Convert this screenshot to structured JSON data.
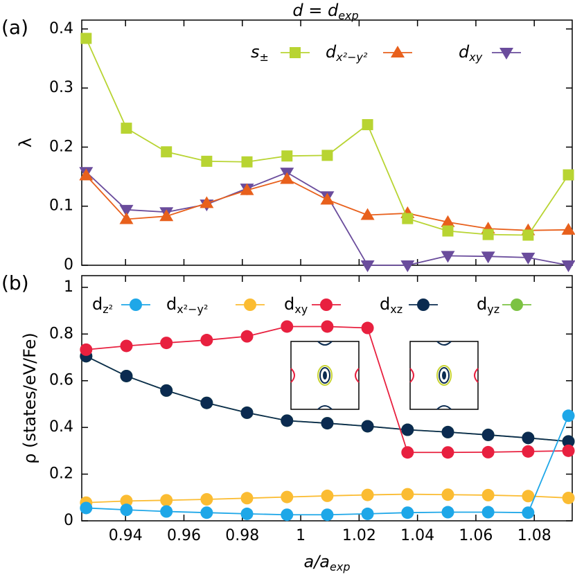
{
  "chart_data": [
    {
      "type": "line",
      "panel": "(a)",
      "title": "d = dexp",
      "y_label": "λ",
      "x": [
        0.9265,
        0.9403,
        0.954,
        0.9678,
        0.9816,
        0.9953,
        1.0091,
        1.0229,
        1.0366,
        1.0504,
        1.0642,
        1.0779,
        1.0917
      ],
      "xlim": [
        0.925,
        1.093
      ],
      "xticks": [
        0.94,
        0.96,
        0.98,
        1,
        1.02,
        1.04,
        1.06,
        1.08
      ],
      "ylim": [
        0,
        0.415
      ],
      "yticks": [
        0,
        0.1,
        0.2,
        0.3,
        0.4
      ],
      "series": [
        {
          "name": "s±",
          "color": "#b8d432",
          "marker": "square",
          "values": [
            0.384,
            0.232,
            0.192,
            0.176,
            0.175,
            0.185,
            0.186,
            0.238,
            0.079,
            0.058,
            0.052,
            0.051,
            0.153
          ]
        },
        {
          "name": "dx²−y²",
          "color": "#e8601c",
          "marker": "triangle-up",
          "values": [
            0.152,
            0.078,
            0.083,
            0.105,
            0.127,
            0.146,
            0.111,
            0.085,
            0.088,
            0.073,
            0.062,
            0.059,
            0.06
          ]
        },
        {
          "name": "dxy",
          "color": "#6a4c9c",
          "marker": "triangle-down",
          "values": [
            0.158,
            0.094,
            0.09,
            0.103,
            0.13,
            0.157,
            0.117,
            0,
            0,
            0.016,
            0.015,
            0.013,
            0
          ]
        }
      ]
    },
    {
      "type": "line",
      "panel": "(b)",
      "x_label": "a/aexp",
      "y_label": "ρ (states/eV/Fe)",
      "x": [
        0.9265,
        0.9403,
        0.954,
        0.9678,
        0.9816,
        0.9953,
        1.0091,
        1.0229,
        1.0366,
        1.0504,
        1.0642,
        1.0779,
        1.0917
      ],
      "xlim": [
        0.925,
        1.093
      ],
      "xticks": [
        0.94,
        0.96,
        0.98,
        1,
        1.02,
        1.04,
        1.06,
        1.08
      ],
      "ylim": [
        0,
        1.05
      ],
      "yticks": [
        0,
        0.2,
        0.4,
        0.6,
        0.8,
        1
      ],
      "series": [
        {
          "name": "dz²",
          "color": "#1ea7e8",
          "marker": "circle",
          "values": [
            0.055,
            0.047,
            0.04,
            0.035,
            0.03,
            0.026,
            0.026,
            0.03,
            0.035,
            0.037,
            0.037,
            0.035,
            0.45
          ]
        },
        {
          "name": "dx²−y²",
          "color": "#fbbc32",
          "marker": "circle",
          "values": [
            0.078,
            0.085,
            0.088,
            0.092,
            0.097,
            0.102,
            0.107,
            0.111,
            0.114,
            0.112,
            0.11,
            0.106,
            0.098
          ]
        },
        {
          "name": "dxy",
          "color": "#e8203f",
          "marker": "circle",
          "values": [
            0.733,
            0.749,
            0.762,
            0.774,
            0.79,
            0.832,
            0.832,
            0.826,
            0.293,
            0.293,
            0.294,
            0.297,
            0.3
          ]
        },
        {
          "name": "dxz",
          "color": "#0b2b50",
          "marker": "circle",
          "values": [
            0.705,
            0.62,
            0.558,
            0.505,
            0.463,
            0.429,
            0.418,
            0.405,
            0.39,
            0.38,
            0.368,
            0.355,
            0.34
          ]
        },
        {
          "name": "dyz",
          "color": "#7cc242",
          "marker": "circle",
          "values": [
            0.705,
            0.62,
            0.558,
            0.505,
            0.463,
            0.429,
            0.418,
            0.405,
            0.39,
            0.38,
            0.368,
            0.355,
            0.34
          ]
        }
      ]
    }
  ]
}
